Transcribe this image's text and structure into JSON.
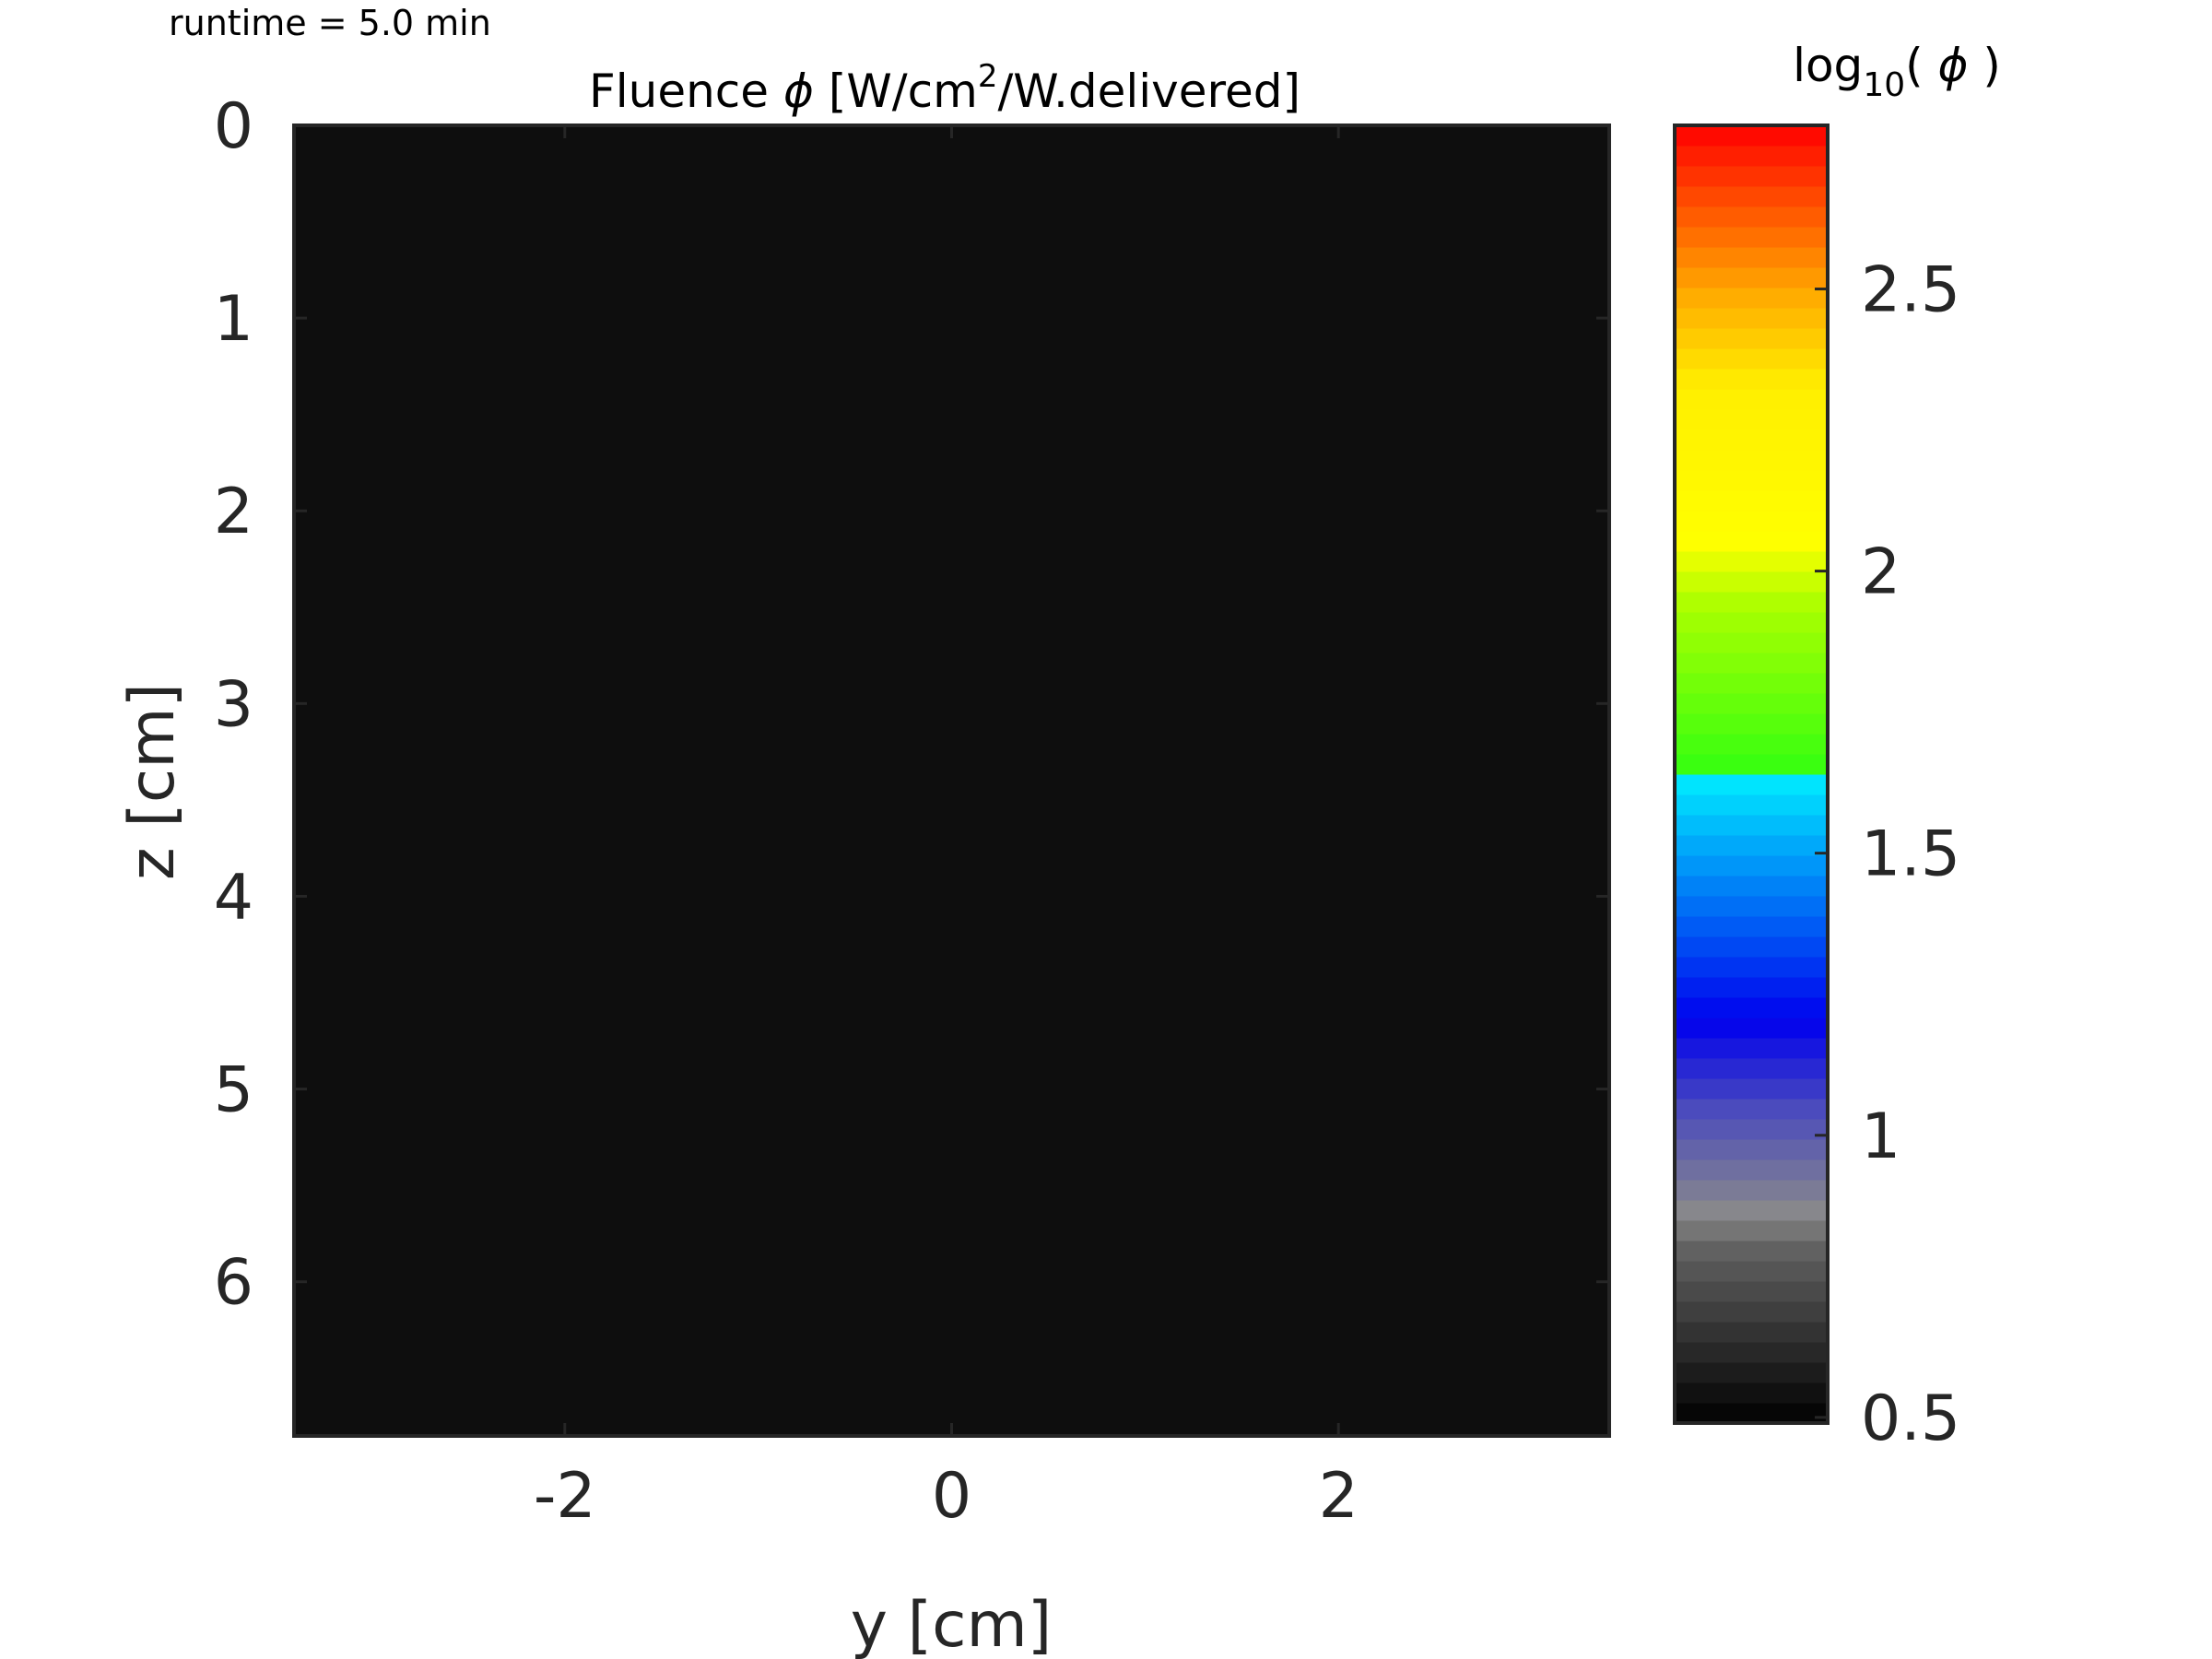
{
  "header": {
    "runtime_label": "runtime = 5.0 min"
  },
  "chart_data": {
    "type": "heatmap",
    "title": {
      "prefix": "Fluence ",
      "symbol": "ϕ",
      "unit_start": " [W/cm",
      "unit_sup": "2",
      "unit_end": "/W.delivered]"
    },
    "xlabel": "y [cm]",
    "ylabel": "z [cm]",
    "xlim": [
      -3.4,
      3.4
    ],
    "ylim": [
      0,
      6.8
    ],
    "y_reversed": true,
    "x_ticks": [
      -2,
      0,
      2
    ],
    "x_tick_labels": [
      "-2",
      "0",
      "2"
    ],
    "y_ticks": [
      0,
      1,
      2,
      3,
      4,
      5,
      6
    ],
    "y_tick_labels": [
      "0",
      "1",
      "2",
      "3",
      "4",
      "5",
      "6"
    ],
    "field_value": "uniform (below colour-scale minimum)",
    "field_color": "#0e0e0e",
    "colorbar": {
      "label": {
        "prefix": "log",
        "subscript": "10",
        "middle": "( ",
        "symbol": "ϕ",
        "suffix": " )"
      },
      "lim": [
        0.49,
        2.79
      ],
      "ticks": [
        0.5,
        1,
        1.5,
        2,
        2.5
      ],
      "tick_labels": [
        "0.5",
        "1",
        "1.5",
        "2",
        "2.5"
      ],
      "colormap_stops": [
        {
          "v": 0.0,
          "c": "#000000"
        },
        {
          "v": 0.14,
          "c": "#666666"
        },
        {
          "v": 0.16,
          "c": "#8a8a8a"
        },
        {
          "v": 0.24,
          "c": "#4d4dbb"
        },
        {
          "v": 0.31,
          "c": "#0000ee"
        },
        {
          "v": 0.5,
          "c": "#00eeff"
        },
        {
          "v": 0.5,
          "c": "#33ff11"
        },
        {
          "v": 0.63,
          "c": "#aaff00"
        },
        {
          "v": 0.68,
          "c": "#ffff00"
        },
        {
          "v": 0.8,
          "c": "#ffee00"
        },
        {
          "v": 0.87,
          "c": "#ffaa00"
        },
        {
          "v": 1.0,
          "c": "#ff0000"
        }
      ]
    }
  }
}
